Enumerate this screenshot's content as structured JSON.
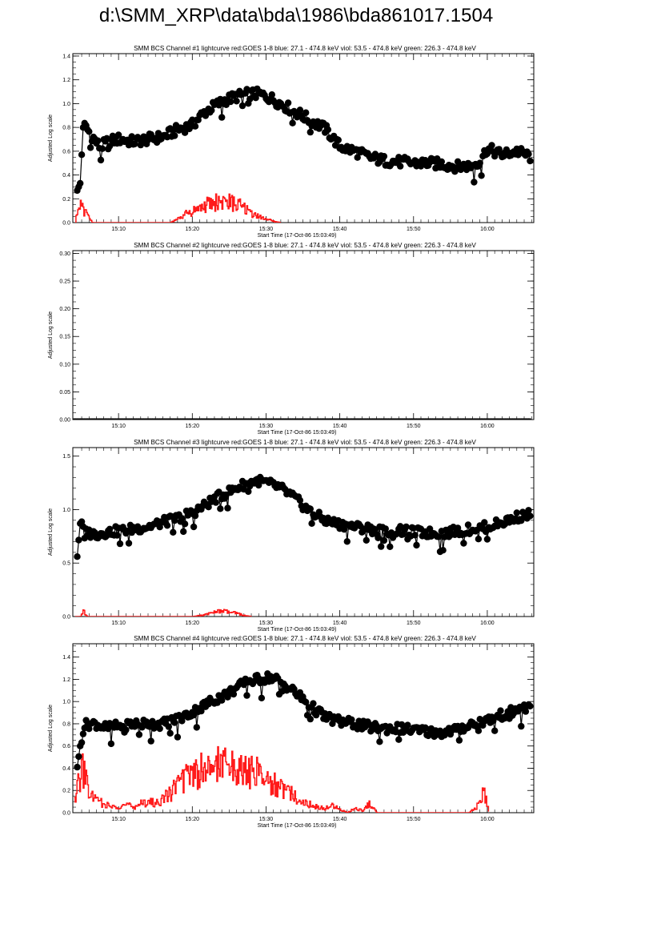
{
  "page": {
    "title": "d:\\SMM_XRP\\data\\bda\\1986\\bda861017.1504"
  },
  "colors": {
    "data": "#000000",
    "goes": "#ff1a1a",
    "axes": "#000000",
    "background": "#ffffff"
  },
  "chart_data": [
    {
      "type": "line",
      "title": "SMM BCS Channel #1 lightcurve  red:GOES 1-8  blue: 27.1 - 474.8 keV  viol: 53.5 - 474.8 keV  green: 226.3 - 474.8 keV",
      "xlabel": "Start Time (17-Oct-86 15:03:49)",
      "ylabel": "Adjusted Log scale",
      "xlim_minutes": [
        3.8,
        66.3
      ],
      "ylim": [
        0,
        1.42
      ],
      "xticks": [
        "15:10",
        "15:20",
        "15:30",
        "15:40",
        "15:50",
        "16:00"
      ],
      "yticks": [
        "0.0",
        "0.2",
        "0.4",
        "0.6",
        "0.8",
        "1.0",
        "1.2",
        "1.4"
      ],
      "grid": false,
      "series": [
        {
          "x_minutes": [
            4.4,
            4.8,
            5.2,
            5.8,
            6.5,
            7.5,
            8.5,
            10.0,
            12.0,
            14.0,
            16.0,
            18.0,
            20.0,
            21.5,
            23.0,
            24.5,
            26.0,
            27.5,
            29.0,
            30.5,
            32.0,
            34.0,
            36.0,
            38.0,
            40.0,
            42.0,
            44.0,
            46.0,
            48.0,
            50.0,
            52.0,
            54.0,
            56.0,
            58.0,
            59.0,
            60.0,
            62.0,
            64.0,
            66.0
          ],
          "y": [
            0.27,
            0.33,
            0.82,
            0.78,
            0.72,
            0.63,
            0.68,
            0.7,
            0.68,
            0.7,
            0.72,
            0.78,
            0.82,
            0.92,
            0.98,
            1.03,
            1.06,
            1.08,
            1.08,
            1.05,
            1.0,
            0.93,
            0.86,
            0.79,
            0.64,
            0.6,
            0.55,
            0.52,
            0.51,
            0.5,
            0.5,
            0.49,
            0.47,
            0.48,
            0.52,
            0.62,
            0.57,
            0.6,
            0.55
          ]
        },
        {
          "x_minutes": [
            4.1,
            4.6,
            5.2,
            5.8,
            6.4,
            7.0,
            17.0,
            18.0,
            19.0,
            20.0,
            21.0,
            22.0,
            23.0,
            24.0,
            25.0,
            26.0,
            27.0,
            28.0,
            29.0,
            30.0,
            31.0,
            32.0
          ],
          "y": [
            0.0,
            0.22,
            0.1,
            0.06,
            0.0,
            0.0,
            0.0,
            0.03,
            0.07,
            0.1,
            0.12,
            0.15,
            0.17,
            0.18,
            0.17,
            0.15,
            0.12,
            0.08,
            0.05,
            0.03,
            0.01,
            0.0
          ]
        }
      ]
    },
    {
      "type": "line",
      "title": "SMM BCS Channel #2 lightcurve  red:GOES 1-8  blue: 27.1 - 474.8 keV  viol: 53.5 - 474.8 keV  green: 226.3 - 474.8 keV",
      "xlabel": "Start Time (17-Oct-86 15:03:49)",
      "ylabel": "Adjusted Log scale",
      "xlim_minutes": [
        3.8,
        66.3
      ],
      "ylim": [
        0,
        0.305
      ],
      "xticks": [
        "15:10",
        "15:20",
        "15:30",
        "15:40",
        "15:50",
        "16:00"
      ],
      "yticks": [
        "0.00",
        "0.05",
        "0.10",
        "0.15",
        "0.20",
        "0.25",
        "0.30"
      ],
      "grid": false,
      "series": [
        {
          "x_minutes": [
            4.0,
            66.0
          ],
          "y": [
            0.0,
            0.0
          ]
        },
        {
          "x_minutes": [
            4.0,
            66.0
          ],
          "y": [
            0.0,
            0.0
          ]
        }
      ]
    },
    {
      "type": "line",
      "title": "SMM BCS Channel #3 lightcurve  red:GOES 1-8  blue: 27.1 - 474.8 keV  viol: 53.5 - 474.8 keV  green: 226.3 - 474.8 keV",
      "xlabel": "Start Time (17-Oct-86 15:03:49)",
      "ylabel": "Adjusted Log scale",
      "xlim_minutes": [
        3.8,
        66.3
      ],
      "ylim": [
        0,
        1.58
      ],
      "xticks": [
        "15:10",
        "15:20",
        "15:30",
        "15:40",
        "15:50",
        "16:00"
      ],
      "yticks": [
        "0.0",
        "0.5",
        "1.0",
        "1.5"
      ],
      "grid": false,
      "series": [
        {
          "x_minutes": [
            4.4,
            4.8,
            5.3,
            6.0,
            7.0,
            8.5,
            10.0,
            12.0,
            14.0,
            16.0,
            18.0,
            20.0,
            21.5,
            23.0,
            24.5,
            26.0,
            27.5,
            29.0,
            30.5,
            32.0,
            34.0,
            36.0,
            38.0,
            40.0,
            42.0,
            44.0,
            46.0,
            48.0,
            50.0,
            52.0,
            54.0,
            56.0,
            58.0,
            60.0,
            62.0,
            64.0,
            66.0
          ],
          "y": [
            0.56,
            0.87,
            0.82,
            0.78,
            0.77,
            0.79,
            0.8,
            0.82,
            0.84,
            0.88,
            0.92,
            0.97,
            1.03,
            1.1,
            1.15,
            1.2,
            1.25,
            1.27,
            1.24,
            1.2,
            1.1,
            0.98,
            0.9,
            0.86,
            0.84,
            0.82,
            0.8,
            0.8,
            0.79,
            0.78,
            0.78,
            0.8,
            0.82,
            0.84,
            0.88,
            0.93,
            0.96
          ]
        },
        {
          "x_minutes": [
            4.1,
            4.8,
            5.2,
            5.7,
            20.0,
            21.0,
            22.0,
            23.0,
            24.0,
            25.0,
            26.0,
            27.0,
            28.0
          ],
          "y": [
            0.0,
            0.0,
            0.05,
            0.0,
            0.0,
            0.01,
            0.02,
            0.04,
            0.05,
            0.04,
            0.03,
            0.01,
            0.0
          ]
        }
      ]
    },
    {
      "type": "line",
      "title": "SMM BCS Channel #4 lightcurve  red:GOES 1-8  blue: 27.1 - 474.8 keV  viol: 53.5 - 474.8 keV  green: 226.3 - 474.8 keV",
      "xlabel": "Start Time (17-Oct-86 15:03:49)",
      "ylabel": "Adjusted Log scale",
      "xlim_minutes": [
        3.8,
        66.3
      ],
      "ylim": [
        0,
        1.52
      ],
      "xticks": [
        "15:10",
        "15:20",
        "15:30",
        "15:40",
        "15:50",
        "16:00"
      ],
      "yticks": [
        "0.0",
        "0.2",
        "0.4",
        "0.6",
        "0.8",
        "1.0",
        "1.2",
        "1.4"
      ],
      "grid": false,
      "series": [
        {
          "x_minutes": [
            4.4,
            4.8,
            5.3,
            6.0,
            7.0,
            8.5,
            10.0,
            12.0,
            14.0,
            16.0,
            18.0,
            20.0,
            21.5,
            23.0,
            24.5,
            26.0,
            27.5,
            29.0,
            30.5,
            32.0,
            34.0,
            36.0,
            38.0,
            40.0,
            42.0,
            44.0,
            46.0,
            48.0,
            50.0,
            52.0,
            54.0,
            56.0,
            58.0,
            60.0,
            62.0,
            64.0,
            66.0
          ],
          "y": [
            0.41,
            0.6,
            0.78,
            0.8,
            0.8,
            0.76,
            0.78,
            0.8,
            0.8,
            0.8,
            0.84,
            0.9,
            0.96,
            1.02,
            1.06,
            1.12,
            1.18,
            1.2,
            1.22,
            1.18,
            1.08,
            0.96,
            0.86,
            0.82,
            0.8,
            0.77,
            0.76,
            0.76,
            0.74,
            0.73,
            0.72,
            0.75,
            0.8,
            0.83,
            0.88,
            0.92,
            0.95
          ]
        },
        {
          "x_minutes": [
            4.0,
            4.5,
            5.0,
            5.5,
            6.0,
            7.0,
            8.0,
            9.0,
            10.0,
            11.0,
            12.0,
            13.0,
            14.0,
            15.0,
            16.0,
            17.0,
            18.0,
            19.0,
            20.0,
            21.0,
            22.0,
            23.0,
            24.0,
            25.0,
            26.0,
            27.0,
            28.0,
            29.0,
            30.0,
            31.0,
            32.0,
            33.0,
            34.0,
            35.0,
            36.0,
            37.0,
            38.0,
            39.0,
            40.0,
            41.0,
            42.0,
            43.0,
            44.0,
            45.0,
            46.0,
            57.5,
            58.5,
            59.5,
            60.2
          ],
          "y": [
            0.12,
            0.25,
            0.4,
            0.3,
            0.18,
            0.1,
            0.08,
            0.05,
            0.06,
            0.07,
            0.05,
            0.08,
            0.1,
            0.08,
            0.12,
            0.18,
            0.25,
            0.32,
            0.36,
            0.38,
            0.4,
            0.42,
            0.42,
            0.41,
            0.4,
            0.38,
            0.36,
            0.34,
            0.3,
            0.26,
            0.22,
            0.18,
            0.14,
            0.1,
            0.07,
            0.05,
            0.04,
            0.06,
            0.03,
            0.0,
            0.04,
            0.02,
            0.08,
            0.0,
            0.0,
            0.0,
            0.05,
            0.18,
            0.0
          ]
        }
      ]
    }
  ]
}
